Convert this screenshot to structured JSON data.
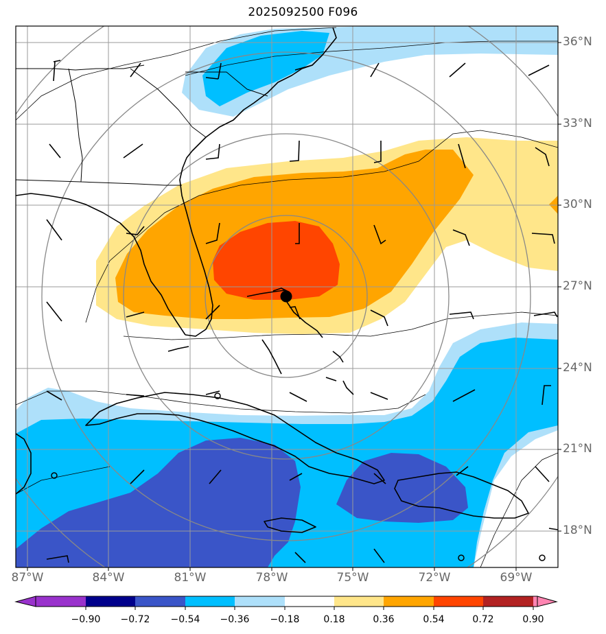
{
  "title": "2025092500 F096",
  "map": {
    "lat_ticks": [
      "36°N",
      "33°N",
      "30°N",
      "27°N",
      "24°N",
      "21°N",
      "18°N"
    ],
    "lon_ticks": [
      "87°W",
      "84°W",
      "81°W",
      "78°W",
      "75°W",
      "72°W",
      "69°W"
    ],
    "storm_center": "77.6°W 26.6°N",
    "colors": {
      "coastline": "#000000",
      "grid": "#9a9a9a",
      "range_rings": "#888888"
    }
  },
  "colorbar": {
    "tick_labels": [
      "−0.90",
      "−0.72",
      "−0.54",
      "−0.36",
      "−0.18",
      "0.18",
      "0.36",
      "0.54",
      "0.72",
      "0.90"
    ],
    "colors": [
      "#9932cc",
      "#00008b",
      "#3a55c8",
      "#00bfff",
      "#aee0fa",
      "#ffffff",
      "#ffe68a",
      "#ffa500",
      "#ff4500",
      "#b22222",
      "#ff85b2"
    ]
  }
}
